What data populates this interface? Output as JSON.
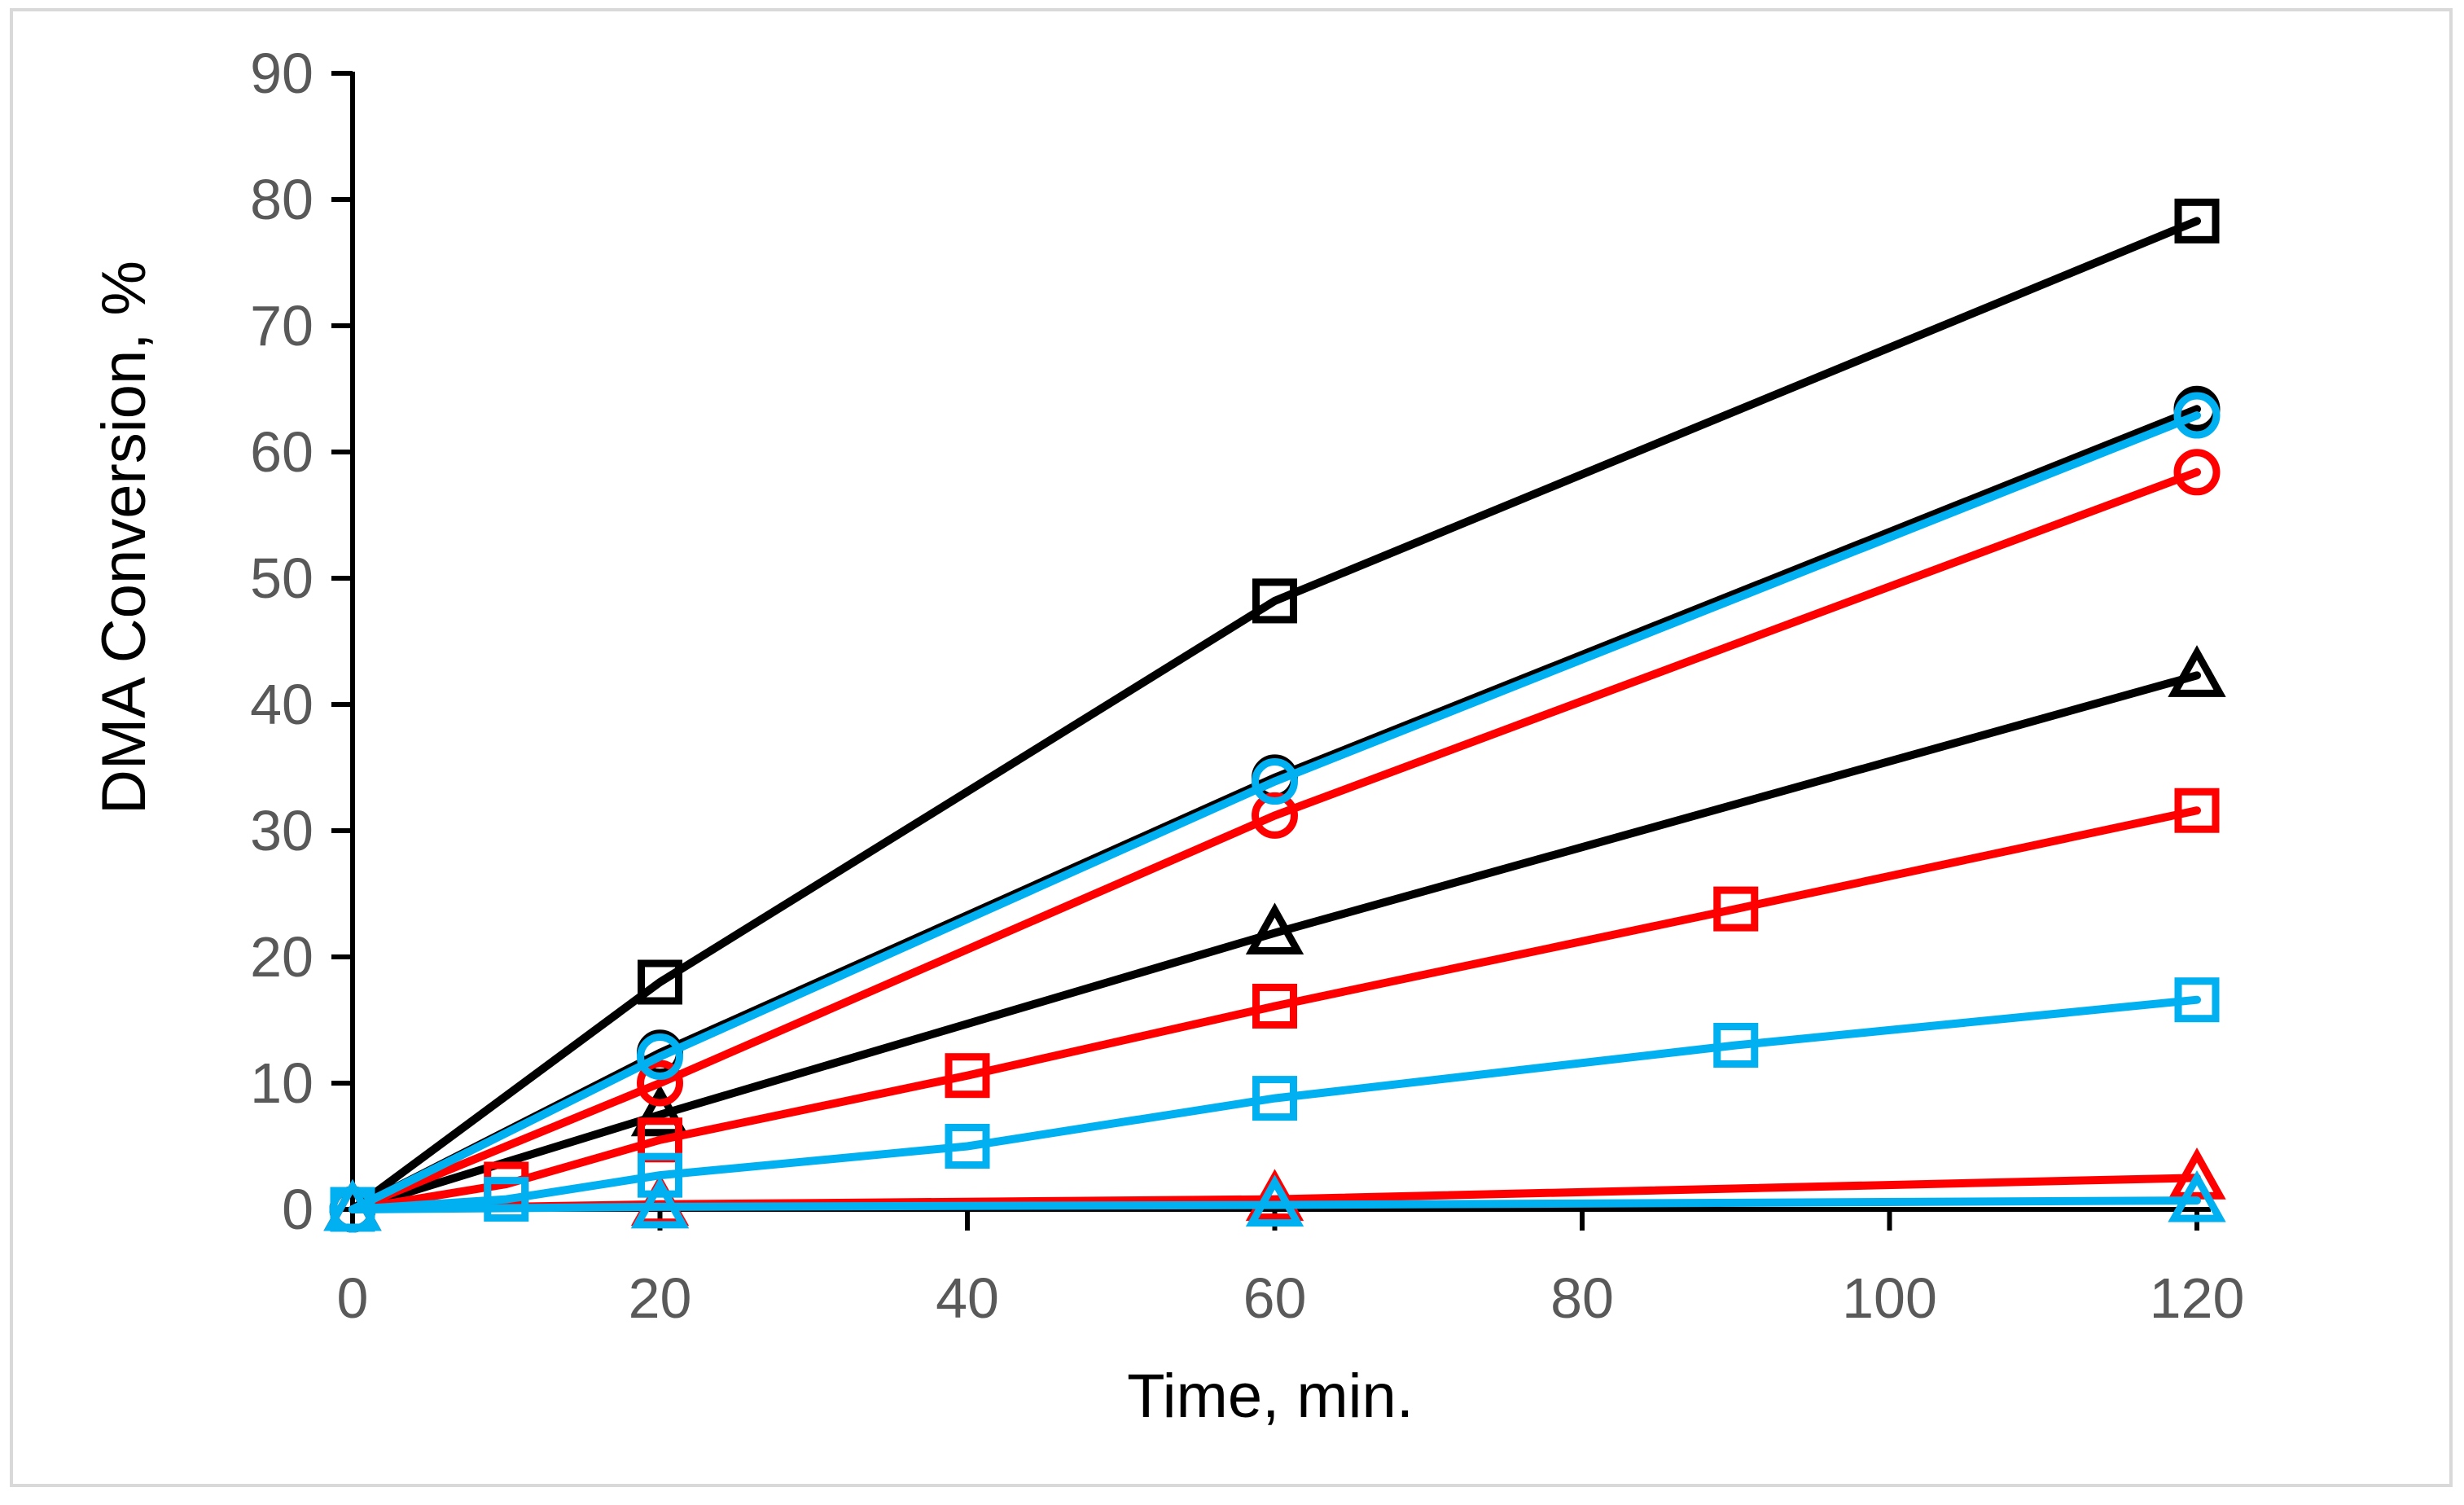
{
  "figure": {
    "background": "#FFFFFF",
    "border_color": "#D9D9D9",
    "axis_color": "#000000",
    "tick_label_color": "#595959",
    "x_axis_title": "Time, min.",
    "y_axis_title": "DMA Conversion, %"
  },
  "chart_data": {
    "type": "line",
    "title": "",
    "xlabel": "Time, min.",
    "ylabel": "DMA Conversion, %",
    "xlim": [
      0,
      120
    ],
    "ylim": [
      0,
      90
    ],
    "x_ticks": [
      0,
      20,
      40,
      60,
      80,
      100,
      120
    ],
    "y_ticks": [
      0,
      10,
      20,
      30,
      40,
      50,
      60,
      70,
      80,
      90
    ],
    "grid": false,
    "legend_position": "none",
    "marker_fill": "none",
    "series": [
      {
        "name": "black-square",
        "color": "#000000",
        "marker": "square",
        "x": [
          0,
          20,
          60,
          120
        ],
        "y": [
          0,
          18.0,
          48.2,
          78.3
        ]
      },
      {
        "name": "black-circle",
        "color": "#000000",
        "marker": "circle",
        "x": [
          0,
          20,
          60,
          120
        ],
        "y": [
          0,
          12.4,
          34.2,
          63.4
        ]
      },
      {
        "name": "black-triangle",
        "color": "#000000",
        "marker": "triangle",
        "x": [
          0,
          20,
          60,
          120
        ],
        "y": [
          0,
          7.5,
          21.9,
          42.3
        ]
      },
      {
        "name": "red-circle",
        "color": "#FF0000",
        "marker": "circle",
        "x": [
          0,
          20,
          60,
          120
        ],
        "y": [
          0,
          10.0,
          31.2,
          58.4
        ]
      },
      {
        "name": "red-square",
        "color": "#FF0000",
        "marker": "square",
        "x": [
          0,
          10,
          20,
          40,
          60,
          90,
          120
        ],
        "y": [
          0,
          2.0,
          5.5,
          10.6,
          16.1,
          23.8,
          31.6
        ]
      },
      {
        "name": "red-triangle",
        "color": "#FF0000",
        "marker": "triangle",
        "x": [
          0,
          20,
          60,
          120
        ],
        "y": [
          0,
          0.4,
          0.8,
          2.5
        ]
      },
      {
        "name": "cyan-circle",
        "color": "#00B0F0",
        "marker": "circle",
        "x": [
          0,
          20,
          60,
          120
        ],
        "y": [
          0,
          12.1,
          33.9,
          62.9
        ]
      },
      {
        "name": "cyan-square",
        "color": "#00B0F0",
        "marker": "square",
        "x": [
          0,
          10,
          20,
          40,
          60,
          90,
          120
        ],
        "y": [
          0,
          0.8,
          2.7,
          5.0,
          8.8,
          13.0,
          16.6
        ]
      },
      {
        "name": "cyan-triangle",
        "color": "#00B0F0",
        "marker": "triangle",
        "x": [
          0,
          20,
          60,
          120
        ],
        "y": [
          0,
          0.2,
          0.35,
          0.7
        ]
      }
    ]
  }
}
